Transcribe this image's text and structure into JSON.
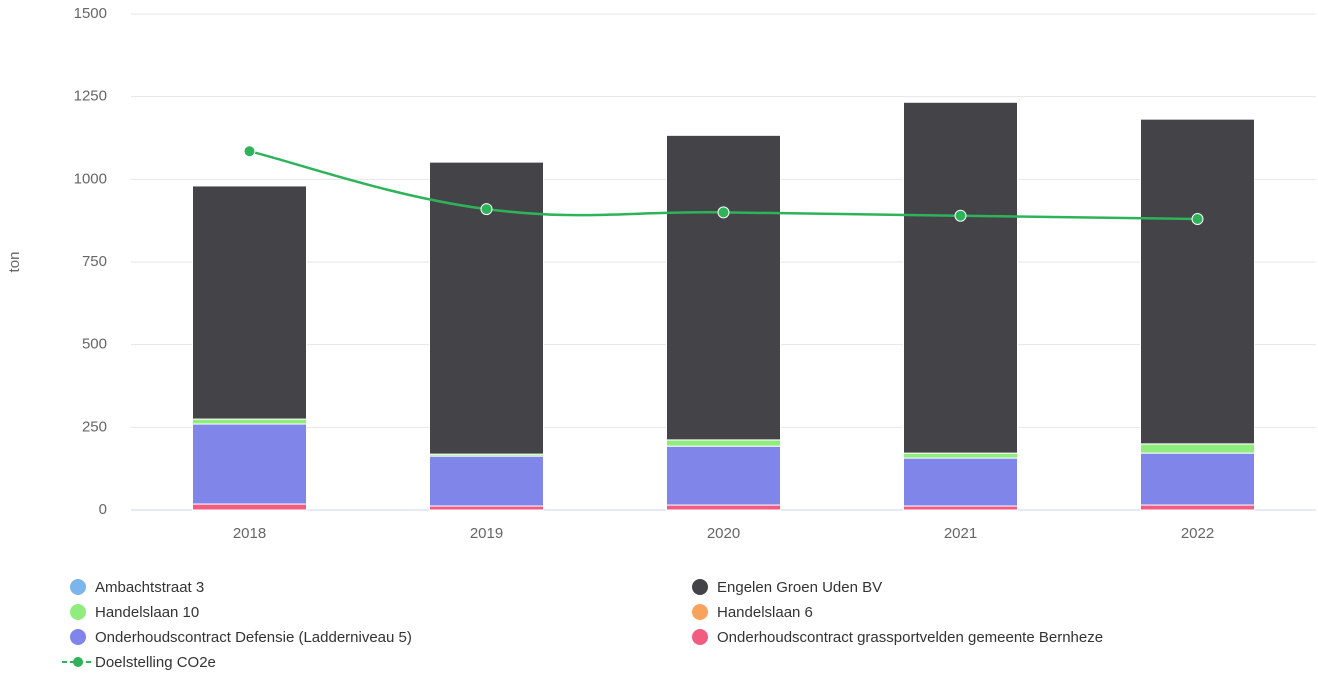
{
  "chart_data": {
    "type": "bar",
    "stacked": true,
    "y_label": "ton",
    "categories": [
      "2018",
      "2019",
      "2020",
      "2021",
      "2022"
    ],
    "ylim": [
      0,
      1500
    ],
    "yticks": [
      0,
      250,
      500,
      750,
      1000,
      1250,
      1500
    ],
    "grid": true,
    "series": [
      {
        "name": "Ambachtstraat 3",
        "color": "#7cb5ec",
        "values": [
          0,
          0,
          0,
          0,
          0
        ]
      },
      {
        "name": "Engelen Groen Uden BV",
        "color": "#434348",
        "values": [
          705,
          883,
          921,
          1061,
          982
        ]
      },
      {
        "name": "Handelslaan 10",
        "color": "#90ed7d",
        "values": [
          15,
          6,
          19,
          15,
          28
        ]
      },
      {
        "name": "Handelslaan 6",
        "color": "#f7a35c",
        "values": [
          0,
          0,
          0,
          0,
          0
        ]
      },
      {
        "name": "Onderhoudscontract Defensie (Ladderniveau 5)",
        "color": "#8085e9",
        "values": [
          242,
          151,
          178,
          145,
          157
        ]
      },
      {
        "name": "Onderhoudscontract grassportvelden gemeente Bernheze",
        "color": "#f15c80",
        "values": [
          18,
          12,
          15,
          12,
          15
        ]
      },
      {
        "name": "Doelstelling CO2e",
        "color": "#2fb35a",
        "type": "line",
        "values": [
          1085,
          910,
          900,
          890,
          880
        ]
      }
    ]
  }
}
